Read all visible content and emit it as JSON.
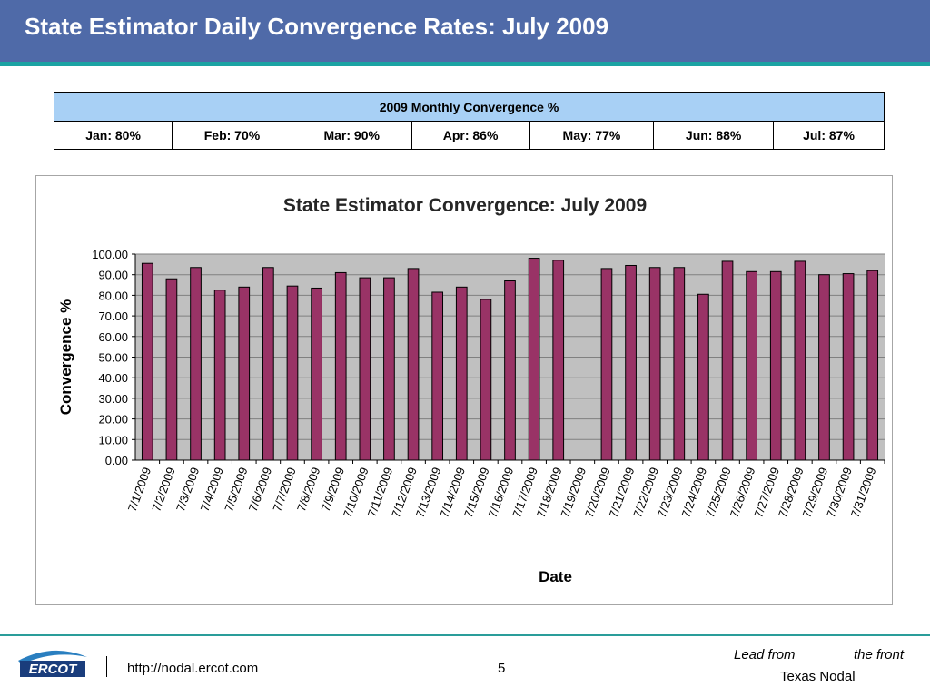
{
  "slide": {
    "title": "State Estimator Daily Convergence Rates: July 2009",
    "page_number": "5"
  },
  "monthly_table": {
    "header": "2009 Monthly Convergence %",
    "cells": [
      "Jan: 80%",
      "Feb: 70%",
      "Mar: 90%",
      "Apr: 86%",
      "May: 77%",
      "Jun: 88%",
      "Jul: 87%"
    ]
  },
  "footer": {
    "url": "http://nodal.ercot.com",
    "slogan_left": "Lead from",
    "slogan_right": "the front",
    "tagline": "Texas Nodal",
    "logo_text": "ERCOT",
    "logo_icon": "ercot-swoosh-logo"
  },
  "colors": {
    "title_bar": "#4f6aa8",
    "accent": "#1ba3a3",
    "table_header": "#a8d0f5",
    "plot_area": "#c0c0c0",
    "bar": "#993366"
  },
  "chart_data": {
    "type": "bar",
    "title": "State Estimator Convergence: July 2009",
    "xlabel": "Date",
    "ylabel": "Convergence %",
    "ylim": [
      0,
      100
    ],
    "yticks": [
      "0.00",
      "10.00",
      "20.00",
      "30.00",
      "40.00",
      "50.00",
      "60.00",
      "70.00",
      "80.00",
      "90.00",
      "100.00"
    ],
    "grid": true,
    "legend": "none",
    "categories": [
      "7/1/2009",
      "7/2/2009",
      "7/3/2009",
      "7/4/2009",
      "7/5/2009",
      "7/6/2009",
      "7/7/2009",
      "7/8/2009",
      "7/9/2009",
      "7/10/2009",
      "7/11/2009",
      "7/12/2009",
      "7/13/2009",
      "7/14/2009",
      "7/15/2009",
      "7/16/2009",
      "7/17/2009",
      "7/18/2009",
      "7/19/2009",
      "7/20/2009",
      "7/21/2009",
      "7/22/2009",
      "7/23/2009",
      "7/24/2009",
      "7/25/2009",
      "7/26/2009",
      "7/27/2009",
      "7/28/2009",
      "7/29/2009",
      "7/30/2009",
      "7/31/2009"
    ],
    "values": [
      95.5,
      88,
      93.5,
      82.5,
      84,
      93.5,
      84.5,
      83.5,
      91,
      88.5,
      88.5,
      93,
      81.5,
      84,
      78,
      87,
      98,
      97,
      null,
      93,
      94.5,
      93.5,
      93.5,
      80.5,
      96.5,
      91.5,
      91.5,
      96.5,
      90,
      90.5,
      92
    ]
  }
}
